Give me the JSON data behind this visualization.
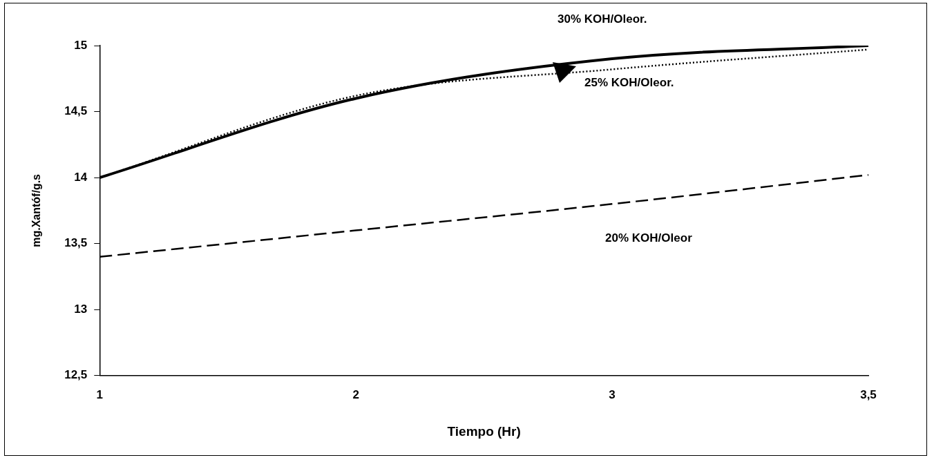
{
  "chart_data": {
    "type": "line",
    "xlabel": "Tiempo (Hr)",
    "ylabel": "mg.Xantóf/g.s",
    "categories": [
      "1",
      "2",
      "3",
      "3,5"
    ],
    "series": [
      {
        "name": "30% KOH/Oleor.",
        "color": "#000000",
        "line_style": "solid",
        "values": [
          14.0,
          14.6,
          14.9,
          15.0
        ]
      },
      {
        "name": "25% KOH/Oleor.",
        "color": "#000000",
        "line_style": "dotted",
        "values": [
          14.0,
          14.62,
          14.82,
          14.97
        ]
      },
      {
        "name": "20% KOH/Oleor",
        "color": "#000000",
        "line_style": "dashed",
        "values": [
          13.4,
          13.6,
          13.8,
          14.02
        ]
      }
    ],
    "ylim": [
      12.5,
      15
    ],
    "yticks": [
      {
        "value": 12.5,
        "label": "12,5"
      },
      13,
      {
        "value": 13.5,
        "label": "13,5"
      },
      14,
      {
        "value": 14.5,
        "label": "14,5"
      },
      15
    ],
    "grid": false,
    "legend": false,
    "marker": "none"
  }
}
